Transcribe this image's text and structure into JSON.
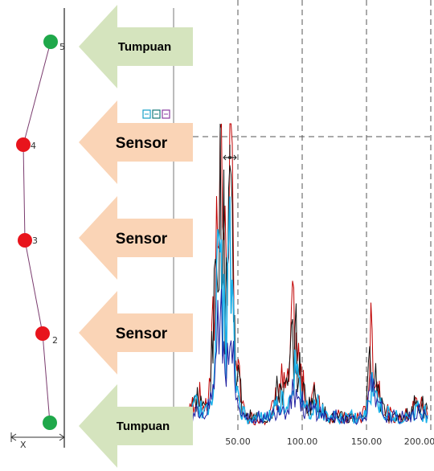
{
  "structure": {
    "axis_label": "X",
    "nodes": [
      {
        "label": "5",
        "color": "#1fa84a",
        "kind": "support"
      },
      {
        "label": "4",
        "color": "#e8141c",
        "kind": "sensor"
      },
      {
        "label": "3",
        "color": "#e8141c",
        "kind": "sensor"
      },
      {
        "label": "2",
        "color": "#e8141c",
        "kind": "sensor"
      },
      {
        "label": "",
        "color": "#1fa84a",
        "kind": "support"
      }
    ]
  },
  "arrows": [
    {
      "label": "Tumpuan",
      "color": "#d5e4be"
    },
    {
      "label": "Sensor",
      "color": "#fad4b6"
    },
    {
      "label": "Sensor",
      "color": "#fad4b6"
    },
    {
      "label": "Sensor",
      "color": "#fad4b6"
    },
    {
      "label": "Tumpuan",
      "color": "#d5e4be"
    }
  ],
  "chart_data": {
    "type": "line",
    "x_ticks": [
      "50.00",
      "100.00",
      "150.00",
      "200.00"
    ],
    "xlim": [
      20,
      205
    ],
    "series_colors": [
      "#c00000",
      "#111111",
      "#1ab0e8",
      "#2020a0"
    ]
  }
}
